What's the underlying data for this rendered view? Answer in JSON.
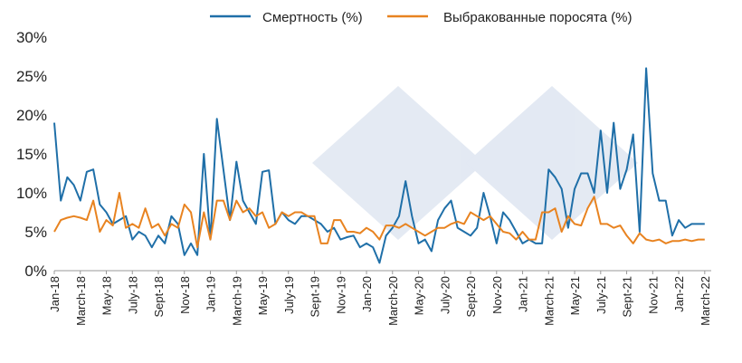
{
  "chart_data": {
    "type": "line",
    "title": "",
    "xlabel": "",
    "ylabel": "",
    "ylim": [
      0,
      30
    ],
    "grid": false,
    "legend_position": "top",
    "y_ticks": [
      "0%",
      "5%",
      "10%",
      "15%",
      "20%",
      "25%",
      "30%"
    ],
    "x_tick_labels": [
      "Jan-18",
      "March-18",
      "May-18",
      "July-18",
      "Sept-18",
      "Nov-18",
      "Jan-19",
      "March-19",
      "May-19",
      "July-19",
      "Sept-19",
      "Nov-19",
      "Jan-20",
      "March-20",
      "May-20",
      "July-20",
      "Sept-20",
      "Nov-20",
      "Jan-21",
      "March-21",
      "May-21",
      "July-21",
      "Sept-21",
      "Nov-21",
      "Jan-22",
      "March-22"
    ],
    "x_range": [
      0,
      50.5
    ],
    "series": [
      {
        "name": "Смертность (%)",
        "color": "#1f6fa8",
        "x": [
          0,
          0.5,
          1,
          1.5,
          2,
          2.5,
          3,
          3.5,
          4,
          4.5,
          5,
          5.5,
          6,
          6.5,
          7,
          7.5,
          8,
          8.5,
          9,
          9.5,
          10,
          10.5,
          11,
          11.5,
          12,
          12.5,
          13,
          13.5,
          14,
          14.5,
          15,
          15.5,
          16,
          16.5,
          17,
          17.5,
          18,
          18.5,
          19,
          19.5,
          20,
          20.5,
          21,
          21.5,
          22,
          22.5,
          23,
          23.5,
          24,
          24.5,
          25,
          25.5,
          26,
          26.5,
          27,
          27.5,
          28,
          28.5,
          29,
          29.5,
          30,
          30.5,
          31,
          31.5,
          32,
          32.5,
          33,
          33.5,
          34,
          34.5,
          35,
          35.5,
          36,
          36.5,
          37,
          37.5,
          38,
          38.5,
          39,
          39.5,
          40,
          40.5,
          41,
          41.5,
          42,
          42.5,
          43,
          43.5,
          44,
          44.5,
          45,
          45.5,
          46,
          46.5,
          47,
          47.5,
          48,
          48.5,
          49,
          49.5,
          50
        ],
        "values": [
          19,
          9,
          12,
          11,
          9,
          12.7,
          13,
          8.5,
          7.5,
          6,
          6.5,
          7,
          4,
          5,
          4.5,
          3,
          4.5,
          3.5,
          7,
          6,
          2,
          3.5,
          2,
          15,
          4,
          19.5,
          13,
          6.5,
          14,
          9,
          7.5,
          6,
          12.7,
          12.9,
          6,
          7.5,
          6.5,
          6,
          7,
          7,
          6.5,
          6,
          5,
          5.5,
          4,
          4.3,
          4.5,
          3,
          3.5,
          3,
          1,
          4.5,
          5.5,
          7,
          11.5,
          7,
          3.5,
          4,
          2.5,
          6.5,
          8,
          9,
          5.5,
          5,
          4.5,
          5.5,
          10,
          7,
          3.5,
          7.5,
          6.5,
          5,
          3.5,
          4,
          3.5,
          3.5,
          13,
          12,
          10.5,
          5.5,
          10.5,
          12.5,
          12.5,
          10,
          18,
          10,
          19,
          10.5,
          13,
          17.5,
          5,
          26,
          12.5,
          9,
          9,
          4.5,
          6.5,
          5.5,
          6,
          6,
          6
        ]
      },
      {
        "name": "Выбракованные поросята (%)",
        "color": "#e88320",
        "x": [
          0,
          0.5,
          1,
          1.5,
          2,
          2.5,
          3,
          3.5,
          4,
          4.5,
          5,
          5.5,
          6,
          6.5,
          7,
          7.5,
          8,
          8.5,
          9,
          9.5,
          10,
          10.5,
          11,
          11.5,
          12,
          12.5,
          13,
          13.5,
          14,
          14.5,
          15,
          15.5,
          16,
          16.5,
          17,
          17.5,
          18,
          18.5,
          19,
          19.5,
          20,
          20.5,
          21,
          21.5,
          22,
          22.5,
          23,
          23.5,
          24,
          24.5,
          25,
          25.5,
          26,
          26.5,
          27,
          27.5,
          28,
          28.5,
          29,
          29.5,
          30,
          30.5,
          31,
          31.5,
          32,
          32.5,
          33,
          33.5,
          34,
          34.5,
          35,
          35.5,
          36,
          36.5,
          37,
          37.5,
          38,
          38.5,
          39,
          39.5,
          40,
          40.5,
          41,
          41.5,
          42,
          42.5,
          43,
          43.5,
          44,
          44.5,
          45,
          45.5,
          46,
          46.5,
          47,
          47.5,
          48,
          48.5,
          49,
          49.5,
          50
        ],
        "values": [
          5,
          6.5,
          6.8,
          7,
          6.8,
          6.5,
          9,
          5,
          6.5,
          5.8,
          10,
          5.5,
          6,
          5.5,
          8,
          5.5,
          6,
          4.5,
          6,
          5.5,
          8.5,
          7.5,
          3,
          7.5,
          4,
          9,
          9,
          6.5,
          9,
          7.5,
          8,
          7,
          7.5,
          5.5,
          6,
          7.5,
          7,
          7.5,
          7.5,
          7,
          7,
          3.5,
          3.5,
          6.5,
          6.5,
          5,
          5,
          4.8,
          5.5,
          5,
          4,
          5.8,
          5.8,
          5.5,
          6,
          5.5,
          5,
          4.5,
          5,
          5.5,
          5.5,
          6,
          6.3,
          6,
          7.5,
          7,
          6.5,
          7,
          6,
          5,
          4.8,
          4,
          5,
          4,
          4,
          7.5,
          7.5,
          8,
          5,
          7,
          6,
          5.8,
          8,
          9.5,
          6,
          6,
          5.5,
          5.8,
          4.5,
          3.5,
          4.8,
          4,
          3.8,
          4,
          3.5,
          3.8,
          3.8,
          4,
          3.8,
          4,
          4
        ]
      }
    ]
  }
}
